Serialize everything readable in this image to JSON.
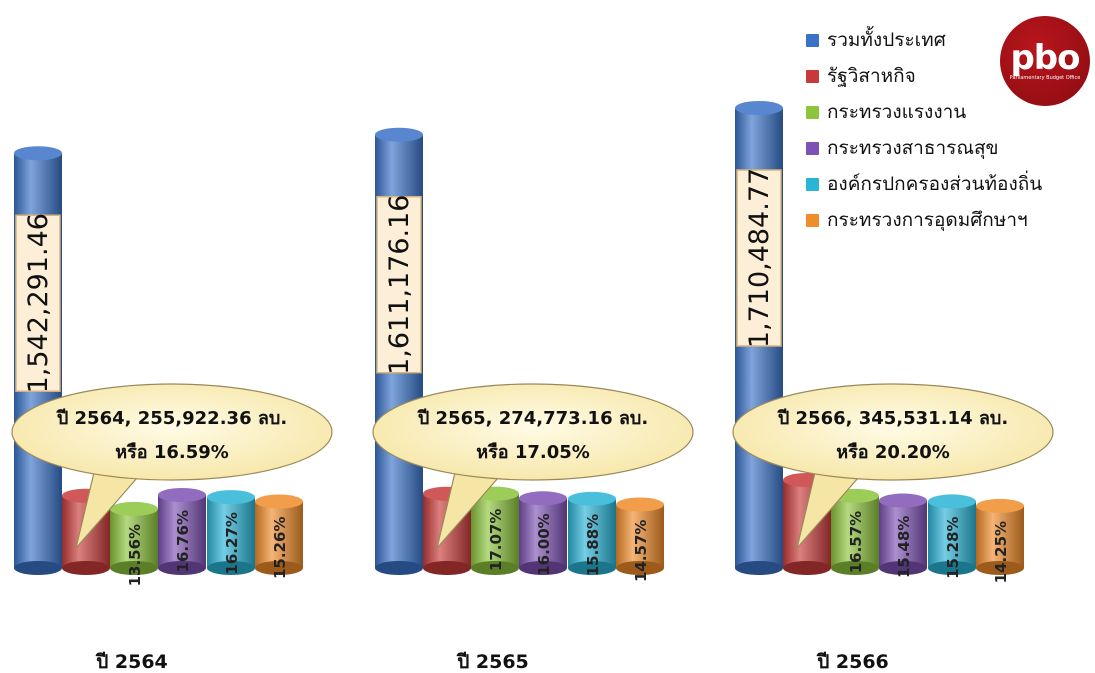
{
  "chart_data": {
    "type": "bar",
    "legend": [
      {
        "name": "รวมทั้งประเทศ",
        "color": "#3a72c8"
      },
      {
        "name": "รัฐวิสาหกิจ",
        "color": "#c83a3a"
      },
      {
        "name": "กระทรวงแรงงาน",
        "color": "#8cc43c"
      },
      {
        "name": "กระทรวงสาธารณสุข",
        "color": "#7d52b4"
      },
      {
        "name": "องค์กรปกครองส่วนท้องถิ่น",
        "color": "#2ab4d6"
      },
      {
        "name": "กระทรวงการอุดมศึกษาฯ",
        "color": "#f08c2a"
      }
    ],
    "groups": [
      {
        "year_label": "ปี 2564",
        "total": 1542291.46,
        "total_label": "1,542,291.46",
        "callout": [
          "ปี 2564, 255,922.36 ลบ.",
          "หรือ 16.59%"
        ],
        "shares": [
          16.59,
          13.56,
          16.76,
          16.27,
          15.26
        ],
        "share_labels": [
          "",
          "13.56%",
          "16.76%",
          "16.27%",
          "15.26%"
        ]
      },
      {
        "year_label": "ปี 2565",
        "total": 1611176.16,
        "total_label": "1,611,176.16",
        "callout": [
          "ปี 2565,  274,773.16 ลบ.",
          "หรือ 17.05%"
        ],
        "shares": [
          17.05,
          17.07,
          16.0,
          15.88,
          14.57
        ],
        "share_labels": [
          "",
          "17.07%",
          "16.00%",
          "15.88%",
          "14.57%"
        ]
      },
      {
        "year_label": "ปี 2566",
        "total": 1710484.77,
        "total_label": "1,710,484.77",
        "callout": [
          "ปี 2566,  345,531.14 ลบ.",
          "หรือ 20.20%"
        ],
        "shares": [
          20.2,
          16.57,
          15.48,
          15.28,
          14.25
        ],
        "share_labels": [
          "",
          "16.57%",
          "15.48%",
          "15.28%",
          "14.25%"
        ]
      }
    ]
  },
  "logo": {
    "text": "pbo",
    "subtitle": "Parliamentary Budget Office"
  }
}
